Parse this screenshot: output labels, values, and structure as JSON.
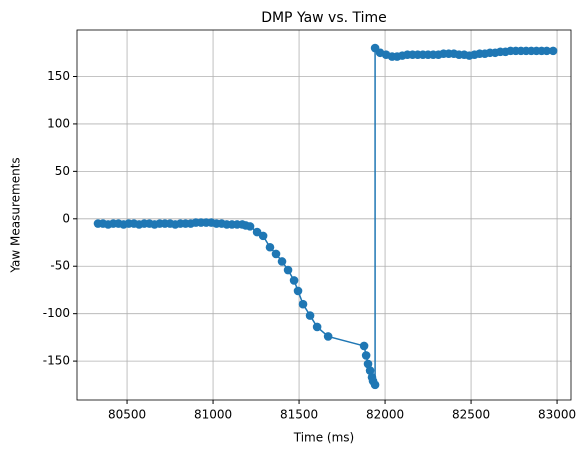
{
  "chart_data": {
    "type": "line",
    "title": "DMP Yaw vs. Time",
    "x_label": "Time (ms)",
    "y_label": "Yaw Measurements",
    "color": "#1f77b4",
    "markers": true,
    "grid": true,
    "xlim": [
      80209,
      83081
    ],
    "ylim": [
      -191,
      199
    ],
    "xticks": [
      80500,
      81000,
      81500,
      82000,
      82500,
      83000
    ],
    "yticks": [
      -150,
      -100,
      -50,
      0,
      50,
      100,
      150
    ],
    "x": [
      80331,
      80360,
      80390,
      80420,
      80450,
      80480,
      80510,
      80540,
      80570,
      80600,
      80630,
      80660,
      80690,
      80720,
      80750,
      80780,
      80810,
      80840,
      80870,
      80900,
      80930,
      80960,
      80990,
      81020,
      81050,
      81080,
      81110,
      81140,
      81170,
      81190,
      81215,
      81256,
      81291,
      81331,
      81366,
      81401,
      81436,
      81471,
      81494,
      81523,
      81564,
      81605,
      81669,
      81878,
      81890,
      81901,
      81913,
      81924,
      81930,
      81942,
      81942,
      81971,
      82006,
      82041,
      82070,
      82100,
      82130,
      82160,
      82190,
      82220,
      82250,
      82280,
      82310,
      82340,
      82370,
      82400,
      82430,
      82460,
      82490,
      82520,
      82550,
      82580,
      82610,
      82640,
      82670,
      82700,
      82730,
      82760,
      82790,
      82820,
      82850,
      82880,
      82910,
      82940,
      82977
    ],
    "values": [
      -5,
      -5,
      -6,
      -5,
      -5,
      -6,
      -5,
      -5,
      -6,
      -5,
      -5,
      -6,
      -5,
      -5,
      -5,
      -6,
      -5,
      -5,
      -5,
      -4,
      -4,
      -4,
      -4,
      -5,
      -5,
      -6,
      -6,
      -6,
      -6,
      -7,
      -8,
      -14,
      -18,
      -30,
      -37,
      -45,
      -54,
      -65,
      -76,
      -90,
      -102,
      -114,
      -124,
      -134,
      -144,
      -153,
      -160,
      -167,
      -171,
      -175,
      180,
      175,
      173,
      171,
      171,
      172,
      173,
      173,
      173,
      173,
      173,
      173,
      173,
      174,
      174,
      174,
      173,
      173,
      172,
      173,
      174,
      174,
      175,
      175,
      176,
      176,
      177,
      177,
      177,
      177,
      177,
      177,
      177,
      177,
      177
    ]
  }
}
